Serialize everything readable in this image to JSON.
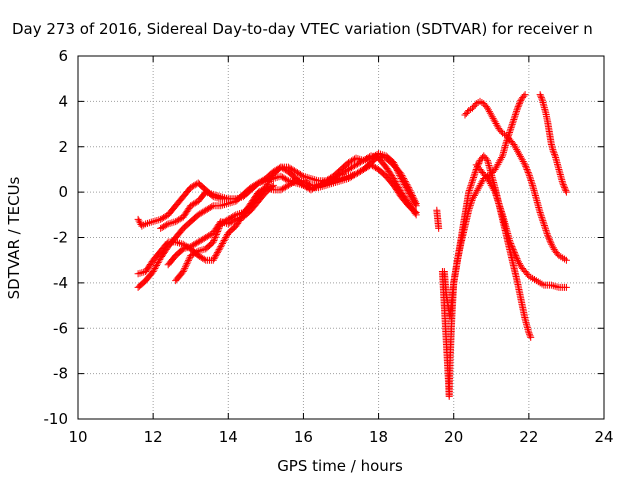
{
  "chart_data": {
    "type": "scatter",
    "title": "Day 273 of 2016, Sidereal Day-to-day VTEC variation (SDTVAR) for receiver n",
    "xlabel": "GPS time / hours",
    "ylabel": "SDTVAR / TECUs",
    "xlim": [
      10,
      24
    ],
    "ylim": [
      -10,
      6
    ],
    "xticks": [
      10,
      12,
      14,
      16,
      18,
      20,
      22,
      24
    ],
    "yticks": [
      -10,
      -8,
      -6,
      -4,
      -2,
      0,
      2,
      4,
      6
    ],
    "grid": true,
    "marker": "+",
    "color": "#ff0000",
    "series": [
      {
        "points": [
          [
            11.6,
            -1.2
          ],
          [
            11.7,
            -1.5
          ],
          [
            11.8,
            -1.4
          ],
          [
            12.0,
            -1.3
          ],
          [
            12.2,
            -1.2
          ],
          [
            12.4,
            -1.0
          ],
          [
            12.6,
            -0.6
          ],
          [
            12.8,
            -0.2
          ],
          [
            13.0,
            0.2
          ],
          [
            13.2,
            0.4
          ],
          [
            13.4,
            0.1
          ],
          [
            13.6,
            -0.2
          ],
          [
            13.8,
            -0.3
          ],
          [
            14.0,
            -0.3
          ],
          [
            14.2,
            -0.3
          ],
          [
            14.4,
            -0.2
          ],
          [
            14.6,
            0.1
          ],
          [
            14.8,
            0.4
          ],
          [
            15.0,
            0.6
          ],
          [
            15.2,
            0.9
          ],
          [
            15.4,
            1.1
          ],
          [
            15.6,
            0.9
          ],
          [
            15.8,
            0.6
          ],
          [
            16.0,
            0.3
          ],
          [
            16.2,
            0.1
          ],
          [
            16.4,
            0.3
          ],
          [
            16.6,
            0.5
          ],
          [
            16.8,
            0.6
          ],
          [
            17.0,
            0.8
          ],
          [
            17.2,
            1.0
          ],
          [
            17.4,
            1.2
          ],
          [
            17.6,
            1.4
          ],
          [
            17.8,
            1.6
          ],
          [
            18.0,
            1.5
          ],
          [
            18.2,
            1.1
          ],
          [
            18.4,
            0.6
          ],
          [
            18.6,
            0.0
          ],
          [
            18.8,
            -0.5
          ],
          [
            19.0,
            -1.0
          ]
        ]
      },
      {
        "points": [
          [
            11.6,
            -4.2
          ],
          [
            11.8,
            -3.9
          ],
          [
            12.0,
            -3.5
          ],
          [
            12.2,
            -2.9
          ],
          [
            12.4,
            -2.4
          ],
          [
            12.6,
            -2.0
          ],
          [
            12.8,
            -1.6
          ],
          [
            13.0,
            -1.3
          ],
          [
            13.2,
            -1.0
          ],
          [
            13.4,
            -0.8
          ],
          [
            13.6,
            -0.6
          ],
          [
            13.8,
            -0.6
          ],
          [
            14.0,
            -0.5
          ],
          [
            14.2,
            -0.4
          ],
          [
            14.4,
            -0.1
          ],
          [
            14.6,
            0.2
          ],
          [
            14.8,
            0.4
          ],
          [
            15.0,
            0.5
          ],
          [
            15.2,
            0.6
          ],
          [
            15.4,
            0.7
          ],
          [
            15.6,
            0.5
          ],
          [
            15.8,
            0.4
          ],
          [
            16.0,
            0.3
          ],
          [
            16.2,
            0.2
          ],
          [
            16.4,
            0.2
          ],
          [
            16.6,
            0.3
          ],
          [
            16.8,
            0.4
          ],
          [
            17.0,
            0.5
          ],
          [
            17.2,
            0.6
          ],
          [
            17.4,
            0.8
          ],
          [
            17.6,
            1.0
          ],
          [
            17.8,
            1.2
          ],
          [
            18.0,
            1.0
          ],
          [
            18.2,
            0.7
          ],
          [
            18.4,
            0.3
          ],
          [
            18.6,
            -0.2
          ],
          [
            18.8,
            -0.6
          ],
          [
            19.0,
            -0.9
          ]
        ]
      },
      {
        "points": [
          [
            11.6,
            -3.6
          ],
          [
            11.8,
            -3.5
          ],
          [
            12.0,
            -3.0
          ],
          [
            12.2,
            -2.6
          ],
          [
            12.4,
            -2.2
          ],
          [
            12.6,
            -2.2
          ],
          [
            12.8,
            -2.3
          ],
          [
            13.0,
            -2.5
          ],
          [
            13.2,
            -2.8
          ],
          [
            13.4,
            -3.0
          ],
          [
            13.6,
            -3.0
          ],
          [
            13.8,
            -2.4
          ],
          [
            14.0,
            -1.8
          ],
          [
            14.2,
            -1.5
          ],
          [
            14.4,
            -1.0
          ],
          [
            14.6,
            -0.5
          ],
          [
            14.8,
            0.0
          ],
          [
            15.0,
            0.2
          ],
          [
            15.2,
            0.1
          ],
          [
            15.4,
            0.1
          ],
          [
            15.6,
            0.3
          ],
          [
            15.8,
            0.5
          ],
          [
            16.0,
            0.5
          ],
          [
            16.2,
            0.3
          ],
          [
            16.4,
            0.3
          ],
          [
            16.6,
            0.4
          ],
          [
            16.8,
            0.5
          ],
          [
            17.0,
            0.6
          ],
          [
            17.2,
            0.7
          ],
          [
            17.4,
            0.8
          ],
          [
            17.6,
            1.0
          ],
          [
            17.8,
            1.3
          ],
          [
            18.0,
            1.6
          ],
          [
            18.2,
            1.5
          ],
          [
            18.4,
            1.2
          ],
          [
            18.6,
            0.8
          ],
          [
            18.8,
            0.2
          ],
          [
            19.0,
            -0.5
          ]
        ]
      },
      {
        "points": [
          [
            12.6,
            -3.9
          ],
          [
            12.8,
            -3.5
          ],
          [
            13.0,
            -2.8
          ],
          [
            13.2,
            -2.6
          ],
          [
            13.4,
            -2.5
          ],
          [
            13.6,
            -2.2
          ],
          [
            13.8,
            -1.4
          ],
          [
            14.0,
            -1.2
          ],
          [
            14.2,
            -1.0
          ],
          [
            14.4,
            -0.9
          ],
          [
            14.6,
            -0.6
          ],
          [
            14.8,
            -0.2
          ],
          [
            15.0,
            0.2
          ],
          [
            15.2,
            0.8
          ],
          [
            15.4,
            1.1
          ],
          [
            15.6,
            1.1
          ],
          [
            15.8,
            0.9
          ],
          [
            16.0,
            0.7
          ],
          [
            16.2,
            0.6
          ],
          [
            16.4,
            0.5
          ],
          [
            16.6,
            0.5
          ],
          [
            16.8,
            0.7
          ],
          [
            17.0,
            1.0
          ],
          [
            17.2,
            1.3
          ],
          [
            17.4,
            1.5
          ],
          [
            17.6,
            1.4
          ],
          [
            17.8,
            1.5
          ],
          [
            18.0,
            1.7
          ],
          [
            18.2,
            1.6
          ],
          [
            18.4,
            1.3
          ],
          [
            18.6,
            0.6
          ],
          [
            18.8,
            0.0
          ],
          [
            19.0,
            -0.6
          ]
        ]
      },
      {
        "points": [
          [
            12.4,
            -3.2
          ],
          [
            12.6,
            -2.8
          ],
          [
            12.8,
            -2.5
          ],
          [
            13.0,
            -2.4
          ],
          [
            13.2,
            -2.2
          ],
          [
            13.4,
            -2.0
          ],
          [
            13.6,
            -1.8
          ],
          [
            13.8,
            -1.3
          ],
          [
            14.0,
            -1.4
          ],
          [
            14.2,
            -1.2
          ],
          [
            14.4,
            -1.1
          ],
          [
            14.6,
            -0.8
          ],
          [
            14.8,
            -0.4
          ],
          [
            15.0,
            0.0
          ],
          [
            15.2,
            0.3
          ]
        ]
      },
      {
        "points": [
          [
            12.2,
            -1.6
          ],
          [
            12.4,
            -1.4
          ],
          [
            12.6,
            -1.3
          ],
          [
            12.8,
            -1.1
          ],
          [
            13.0,
            -0.6
          ],
          [
            13.2,
            -0.4
          ],
          [
            13.4,
            0.0
          ],
          [
            13.6,
            -0.1
          ],
          [
            13.8,
            -0.2
          ],
          [
            14.0,
            -0.3
          ],
          [
            14.2,
            -0.3
          ]
        ]
      },
      {
        "points": [
          [
            19.55,
            -0.8
          ],
          [
            19.6,
            -1.6
          ]
        ]
      },
      {
        "points": [
          [
            19.7,
            -3.5
          ],
          [
            19.75,
            -5.0
          ],
          [
            19.8,
            -6.5
          ],
          [
            19.85,
            -8.0
          ],
          [
            19.88,
            -9.0
          ],
          [
            19.9,
            -7.5
          ],
          [
            19.95,
            -5.5
          ],
          [
            20.0,
            -4.0
          ],
          [
            20.1,
            -3.0
          ],
          [
            20.2,
            -2.0
          ],
          [
            20.3,
            -1.0
          ],
          [
            20.4,
            0.0
          ],
          [
            20.5,
            0.5
          ],
          [
            20.6,
            1.0
          ],
          [
            20.7,
            1.4
          ],
          [
            20.8,
            1.6
          ],
          [
            20.9,
            1.4
          ],
          [
            21.0,
            0.8
          ],
          [
            21.1,
            0.2
          ],
          [
            21.2,
            -0.5
          ],
          [
            21.3,
            -1.2
          ],
          [
            21.4,
            -1.9
          ],
          [
            21.5,
            -2.6
          ],
          [
            21.6,
            -3.3
          ],
          [
            21.7,
            -4.0
          ],
          [
            21.8,
            -4.8
          ],
          [
            21.9,
            -5.6
          ],
          [
            22.0,
            -6.2
          ],
          [
            22.05,
            -6.4
          ]
        ]
      },
      {
        "points": [
          [
            19.75,
            -3.5
          ],
          [
            19.8,
            -4.5
          ],
          [
            19.9,
            -5.5
          ],
          [
            20.0,
            -4.0
          ],
          [
            20.1,
            -3.0
          ],
          [
            20.2,
            -2.2
          ],
          [
            20.3,
            -1.5
          ],
          [
            20.4,
            -0.8
          ],
          [
            20.5,
            -0.3
          ],
          [
            20.6,
            0.0
          ],
          [
            20.7,
            0.3
          ],
          [
            20.8,
            0.6
          ],
          [
            20.9,
            0.7
          ],
          [
            21.0,
            0.8
          ],
          [
            21.1,
            1.0
          ],
          [
            21.2,
            1.3
          ],
          [
            21.3,
            1.6
          ],
          [
            21.4,
            2.2
          ],
          [
            21.5,
            2.7
          ],
          [
            21.6,
            3.2
          ],
          [
            21.7,
            3.7
          ],
          [
            21.8,
            4.1
          ],
          [
            21.9,
            4.3
          ]
        ]
      },
      {
        "points": [
          [
            20.3,
            3.4
          ],
          [
            20.4,
            3.6
          ],
          [
            20.5,
            3.7
          ],
          [
            20.6,
            3.9
          ],
          [
            20.7,
            4.0
          ],
          [
            20.8,
            3.9
          ],
          [
            20.9,
            3.7
          ],
          [
            21.0,
            3.4
          ],
          [
            21.1,
            3.1
          ],
          [
            21.2,
            2.8
          ],
          [
            21.3,
            2.6
          ],
          [
            21.4,
            2.5
          ],
          [
            21.5,
            2.3
          ],
          [
            21.6,
            2.1
          ],
          [
            21.7,
            1.8
          ],
          [
            21.8,
            1.5
          ],
          [
            21.9,
            1.2
          ],
          [
            22.0,
            0.8
          ],
          [
            22.1,
            0.3
          ],
          [
            22.2,
            -0.3
          ],
          [
            22.3,
            -0.9
          ],
          [
            22.4,
            -1.4
          ],
          [
            22.5,
            -1.9
          ],
          [
            22.6,
            -2.3
          ],
          [
            22.7,
            -2.6
          ],
          [
            22.8,
            -2.8
          ],
          [
            22.9,
            -2.9
          ],
          [
            23.0,
            -3.0
          ]
        ]
      },
      {
        "points": [
          [
            20.6,
            1.2
          ],
          [
            20.7,
            1.0
          ],
          [
            20.8,
            0.8
          ],
          [
            20.9,
            0.6
          ],
          [
            21.0,
            0.3
          ],
          [
            21.1,
            0.0
          ],
          [
            21.2,
            -0.5
          ],
          [
            21.3,
            -1.0
          ],
          [
            21.4,
            -1.6
          ],
          [
            21.5,
            -2.2
          ],
          [
            21.6,
            -2.6
          ],
          [
            21.7,
            -3.0
          ],
          [
            21.8,
            -3.3
          ],
          [
            21.9,
            -3.5
          ],
          [
            22.0,
            -3.7
          ],
          [
            22.1,
            -3.8
          ],
          [
            22.2,
            -3.9
          ],
          [
            22.3,
            -4.0
          ],
          [
            22.4,
            -4.1
          ],
          [
            22.6,
            -4.1
          ],
          [
            22.8,
            -4.2
          ],
          [
            23.0,
            -4.2
          ]
        ]
      },
      {
        "points": [
          [
            22.3,
            4.3
          ],
          [
            22.35,
            4.1
          ],
          [
            22.4,
            3.8
          ],
          [
            22.45,
            3.5
          ],
          [
            22.5,
            3.1
          ],
          [
            22.55,
            2.6
          ],
          [
            22.6,
            2.1
          ],
          [
            22.65,
            1.8
          ],
          [
            22.7,
            1.6
          ],
          [
            22.75,
            1.3
          ],
          [
            22.8,
            1.0
          ],
          [
            22.85,
            0.7
          ],
          [
            22.9,
            0.4
          ],
          [
            22.95,
            0.2
          ],
          [
            23.0,
            0.0
          ]
        ]
      }
    ]
  }
}
